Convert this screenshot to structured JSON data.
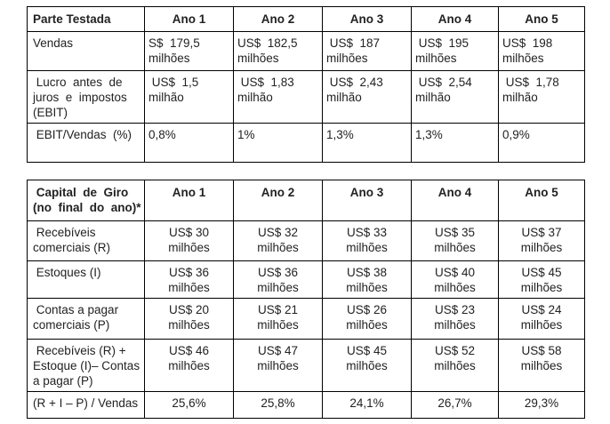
{
  "page": {
    "background_color": "#ffffff",
    "border_color": "#000000",
    "text_color": "#222222"
  },
  "table1": {
    "title": "Parte Testada",
    "columns": [
      "Parte Testada",
      "Ano 1",
      "Ano 2",
      "Ano 3",
      "Ano 4",
      "Ano 5"
    ],
    "rows": [
      {
        "label": "Vendas",
        "values": [
          "S$  179,5\nmilhões",
          "US$  182,5\nmilhões",
          " US$  187\nmilhões",
          " US$  195\nmilhões",
          "US$  198\nmilhões"
        ]
      },
      {
        "label": " Lucro  antes  de\njuros  e  impostos\n(EBIT)",
        "values": [
          " US$  1,5\nmilhão",
          " US$  1,83\nmilhão",
          " US$  2,43\nmilhão",
          " US$  2,54\nmilhão",
          " US$  1,78\nmilhão"
        ]
      },
      {
        "label": " EBIT/Vendas  (%)",
        "values": [
          "0,8%",
          "1%",
          "1,3%",
          "1,3%",
          "0,9%"
        ]
      }
    ]
  },
  "table2": {
    "title": "Capital de Giro (no final do ano)*",
    "columns": [
      " Capital  de  Giro\n(no  final  do  ano)*",
      "Ano 1",
      "Ano 2",
      "Ano 3",
      "Ano 4",
      "Ano 5"
    ],
    "rows": [
      {
        "label": " Recebíveis\ncomerciais (R)",
        "values": [
          "US$ 30\nmilhões",
          "US$ 32\nmilhões",
          "US$ 33\nmilhões",
          "US$ 35\nmilhões",
          "US$ 37\nmilhões"
        ]
      },
      {
        "label": " Estoques (I)",
        "values": [
          "US$ 36\nmilhões",
          "US$ 36\nmilhões",
          "US$ 38\nmilhões",
          "US$ 40\nmilhões",
          "US$ 45\nmilhões"
        ]
      },
      {
        "label": " Contas a pagar\ncomerciais (P)",
        "values": [
          "US$ 20\nmilhões",
          "US$ 21\nmilhões",
          "US$ 26\nmilhões",
          "US$ 23\nmilhões",
          "US$ 24\nmilhões"
        ]
      },
      {
        "label": " Recebíveis (R) +\nEstoque (I)– Contas\na pagar (P)",
        "values": [
          "US$ 46\nmilhões",
          "US$ 47\nmilhões",
          "US$ 45\nmilhões",
          "US$ 52\nmilhões",
          "US$ 58\nmilhões"
        ]
      },
      {
        "label": "(R + I – P) / Vendas",
        "values": [
          "25,6%",
          "25,8%",
          "24,1%",
          "26,7%",
          "29,3%"
        ]
      }
    ]
  }
}
